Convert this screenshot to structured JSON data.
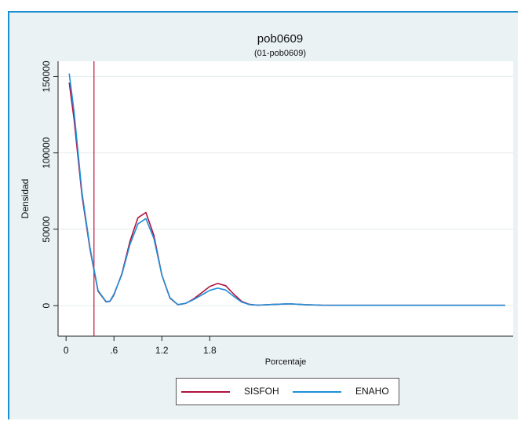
{
  "chart_data": {
    "type": "line",
    "title": "pob0609",
    "subtitle": "(01-pob0609)",
    "xlabel": "Porcentaje",
    "ylabel": "Densidad",
    "xlim": [
      -0.1,
      5.6
    ],
    "ylim": [
      -20000,
      160000
    ],
    "xticks": [
      0,
      0.6,
      1.2,
      1.8
    ],
    "xtick_labels": [
      "0",
      ".6",
      "1.2",
      "1.8"
    ],
    "yticks": [
      0,
      50000,
      100000,
      150000
    ],
    "ytick_labels": [
      "0",
      "50000",
      "100000",
      "150000"
    ],
    "grid": true,
    "legend_position": "bottom",
    "vline": {
      "x": 0.35,
      "color": "#c0143c"
    },
    "series": [
      {
        "name": "SISFOH",
        "color": "#b0123c",
        "x": [
          0.04,
          0.1,
          0.2,
          0.3,
          0.4,
          0.5,
          0.55,
          0.6,
          0.7,
          0.8,
          0.9,
          1.0,
          1.1,
          1.2,
          1.3,
          1.4,
          1.5,
          1.6,
          1.7,
          1.8,
          1.9,
          2.0,
          2.1,
          2.2,
          2.3,
          2.4,
          2.6,
          2.8,
          3.0,
          3.2,
          3.5,
          4.0,
          4.5,
          5.0,
          5.5
        ],
        "y": [
          146000,
          122000,
          72000,
          37000,
          9500,
          2500,
          2800,
          7000,
          21000,
          42000,
          57500,
          61000,
          46000,
          20000,
          5000,
          600,
          1500,
          4500,
          8500,
          12500,
          14500,
          13000,
          7500,
          2800,
          800,
          300,
          800,
          1200,
          600,
          300,
          200,
          200,
          200,
          200,
          200
        ]
      },
      {
        "name": "ENAHO",
        "color": "#1f8fd8",
        "x": [
          0.04,
          0.1,
          0.2,
          0.3,
          0.4,
          0.5,
          0.55,
          0.6,
          0.7,
          0.8,
          0.9,
          1.0,
          1.1,
          1.2,
          1.3,
          1.4,
          1.5,
          1.6,
          1.7,
          1.8,
          1.9,
          2.0,
          2.1,
          2.2,
          2.3,
          2.4,
          2.6,
          2.8,
          3.0,
          3.2,
          3.5,
          4.0,
          4.5,
          5.0,
          5.5
        ],
        "y": [
          152000,
          127000,
          74000,
          38000,
          10000,
          2700,
          3000,
          7500,
          20500,
          40000,
          53500,
          57000,
          44000,
          20000,
          5300,
          700,
          1600,
          4000,
          7000,
          10000,
          11500,
          10200,
          6000,
          2300,
          700,
          300,
          800,
          1200,
          600,
          300,
          200,
          200,
          200,
          200,
          200
        ]
      }
    ]
  }
}
